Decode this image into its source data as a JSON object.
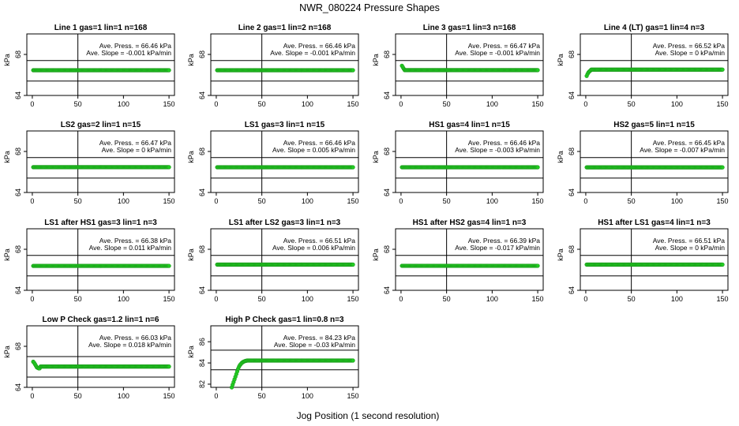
{
  "title": "NWR_080224  Pressure Shapes",
  "xlabel": "Jog Position (1 second resolution)",
  "colors": {
    "points": "#22cc22",
    "point_edge": "#1a9a1a",
    "lines": "#000000"
  },
  "chart_data": [
    {
      "type": "scatter",
      "title": "Line 1 gas=1 lin=1 n=168",
      "ylabel": "kPa",
      "xlim": [
        0,
        150
      ],
      "xticks": [
        0,
        50,
        100,
        150
      ],
      "ylim": [
        64,
        70
      ],
      "yticks": [
        64,
        68
      ],
      "hlines": [
        65.4,
        67.4
      ],
      "vline": 50,
      "ave_press": "Ave. Press. = 66.46 kPa",
      "ave_slope": "Ave. Slope = -0.001  kPa/min",
      "series": {
        "x0": 1,
        "x1": 150,
        "y": 66.46
      }
    },
    {
      "type": "scatter",
      "title": "Line 2 gas=1 lin=2 n=168",
      "ylabel": "kPa",
      "xlim": [
        0,
        150
      ],
      "xticks": [
        0,
        50,
        100,
        150
      ],
      "ylim": [
        64,
        70
      ],
      "yticks": [
        64,
        68
      ],
      "hlines": [
        65.4,
        67.4
      ],
      "vline": 50,
      "ave_press": "Ave. Press. = 66.46 kPa",
      "ave_slope": "Ave. Slope = -0.001  kPa/min",
      "series": {
        "x0": 1,
        "x1": 150,
        "y": 66.46
      }
    },
    {
      "type": "scatter",
      "title": "Line 3 gas=1 lin=3 n=168",
      "ylabel": "kPa",
      "xlim": [
        0,
        150
      ],
      "xticks": [
        0,
        50,
        100,
        150
      ],
      "ylim": [
        64,
        70
      ],
      "yticks": [
        64,
        68
      ],
      "hlines": [
        65.4,
        67.4
      ],
      "vline": 50,
      "ave_press": "Ave. Press. = 66.47 kPa",
      "ave_slope": "Ave. Slope = -0.001  kPa/min",
      "series": {
        "x0": 1,
        "x1": 150,
        "y": 66.47,
        "start": [
          [
            1,
            66.9
          ],
          [
            2,
            66.75
          ],
          [
            3,
            66.6
          ]
        ]
      }
    },
    {
      "type": "scatter",
      "title": "Line 4 (LT) gas=1 lin=4 n=3",
      "ylabel": "kPa",
      "xlim": [
        0,
        150
      ],
      "xticks": [
        0,
        50,
        100,
        150
      ],
      "ylim": [
        64,
        70
      ],
      "yticks": [
        64,
        68
      ],
      "hlines": [
        65.4,
        67.4
      ],
      "vline": 50,
      "ave_press": "Ave. Press. = 66.52 kPa",
      "ave_slope": "Ave. Slope = 0  kPa/min",
      "series": {
        "x0": 1,
        "x1": 150,
        "y": 66.52,
        "start": [
          [
            1,
            65.9
          ],
          [
            2,
            66.1
          ],
          [
            3,
            66.25
          ],
          [
            4,
            66.35
          ],
          [
            5,
            66.42
          ]
        ]
      }
    },
    {
      "type": "scatter",
      "title": "LS2 gas=2 lin=1 n=15",
      "ylabel": "kPa",
      "xlim": [
        0,
        150
      ],
      "xticks": [
        0,
        50,
        100,
        150
      ],
      "ylim": [
        64,
        70
      ],
      "yticks": [
        64,
        68
      ],
      "hlines": [
        65.4,
        67.4
      ],
      "vline": 50,
      "ave_press": "Ave. Press. = 66.47 kPa",
      "ave_slope": "Ave. Slope = 0  kPa/min",
      "series": {
        "x0": 1,
        "x1": 150,
        "y": 66.47
      }
    },
    {
      "type": "scatter",
      "title": "LS1 gas=3 lin=1 n=15",
      "ylabel": "kPa",
      "xlim": [
        0,
        150
      ],
      "xticks": [
        0,
        50,
        100,
        150
      ],
      "ylim": [
        64,
        70
      ],
      "yticks": [
        64,
        68
      ],
      "hlines": [
        65.4,
        67.4
      ],
      "vline": 50,
      "ave_press": "Ave. Press. = 66.46 kPa",
      "ave_slope": "Ave. Slope = 0.005  kPa/min",
      "series": {
        "x0": 1,
        "x1": 150,
        "y": 66.46
      }
    },
    {
      "type": "scatter",
      "title": "HS1 gas=4 lin=1 n=15",
      "ylabel": "kPa",
      "xlim": [
        0,
        150
      ],
      "xticks": [
        0,
        50,
        100,
        150
      ],
      "ylim": [
        64,
        70
      ],
      "yticks": [
        64,
        68
      ],
      "hlines": [
        65.4,
        67.4
      ],
      "vline": 50,
      "ave_press": "Ave. Press. = 66.46 kPa",
      "ave_slope": "Ave. Slope = -0.003  kPa/min",
      "series": {
        "x0": 1,
        "x1": 150,
        "y": 66.46
      }
    },
    {
      "type": "scatter",
      "title": "HS2 gas=5 lin=1 n=15",
      "ylabel": "kPa",
      "xlim": [
        0,
        150
      ],
      "xticks": [
        0,
        50,
        100,
        150
      ],
      "ylim": [
        64,
        70
      ],
      "yticks": [
        64,
        68
      ],
      "hlines": [
        65.4,
        67.4
      ],
      "vline": 50,
      "ave_press": "Ave. Press. = 66.45 kPa",
      "ave_slope": "Ave. Slope = -0.007  kPa/min",
      "series": {
        "x0": 1,
        "x1": 150,
        "y": 66.45
      }
    },
    {
      "type": "scatter",
      "title": "LS1 after HS1 gas=3 lin=1 n=3",
      "ylabel": "kPa",
      "xlim": [
        0,
        150
      ],
      "xticks": [
        0,
        50,
        100,
        150
      ],
      "ylim": [
        64,
        70
      ],
      "yticks": [
        64,
        68
      ],
      "hlines": [
        65.4,
        67.4
      ],
      "vline": 50,
      "ave_press": "Ave. Press. = 66.38 kPa",
      "ave_slope": "Ave. Slope = 0.011  kPa/min",
      "series": {
        "x0": 1,
        "x1": 150,
        "y": 66.38
      }
    },
    {
      "type": "scatter",
      "title": "LS1 after LS2 gas=3 lin=1 n=3",
      "ylabel": "kPa",
      "xlim": [
        0,
        150
      ],
      "xticks": [
        0,
        50,
        100,
        150
      ],
      "ylim": [
        64,
        70
      ],
      "yticks": [
        64,
        68
      ],
      "hlines": [
        65.4,
        67.4
      ],
      "vline": 50,
      "ave_press": "Ave. Press. = 66.51 kPa",
      "ave_slope": "Ave. Slope = 0.006  kPa/min",
      "series": {
        "x0": 1,
        "x1": 150,
        "y": 66.51
      }
    },
    {
      "type": "scatter",
      "title": "HS1 after HS2 gas=4 lin=1 n=3",
      "ylabel": "kPa",
      "xlim": [
        0,
        150
      ],
      "xticks": [
        0,
        50,
        100,
        150
      ],
      "ylim": [
        64,
        70
      ],
      "yticks": [
        64,
        68
      ],
      "hlines": [
        65.4,
        67.4
      ],
      "vline": 50,
      "ave_press": "Ave. Press. = 66.39 kPa",
      "ave_slope": "Ave. Slope = -0.017  kPa/min",
      "series": {
        "x0": 1,
        "x1": 150,
        "y": 66.39
      }
    },
    {
      "type": "scatter",
      "title": "HS1 after LS1 gas=4 lin=1 n=3",
      "ylabel": "kPa",
      "xlim": [
        0,
        150
      ],
      "xticks": [
        0,
        50,
        100,
        150
      ],
      "ylim": [
        64,
        70
      ],
      "yticks": [
        64,
        68
      ],
      "hlines": [
        65.4,
        67.4
      ],
      "vline": 50,
      "ave_press": "Ave. Press. = 66.51 kPa",
      "ave_slope": "Ave. Slope = 0  kPa/min",
      "series": {
        "x0": 1,
        "x1": 150,
        "y": 66.51
      }
    },
    {
      "type": "scatter",
      "title": "Low P Check gas=1.2 lin=1 n=6",
      "ylabel": "kPa",
      "xlim": [
        0,
        150
      ],
      "xticks": [
        0,
        50,
        100,
        150
      ],
      "ylim": [
        64,
        70
      ],
      "yticks": [
        64,
        68
      ],
      "hlines": [
        65.0,
        67.0
      ],
      "vline": 50,
      "ave_press": "Ave. Press. = 66.03 kPa",
      "ave_slope": "Ave. Slope = 0.018  kPa/min",
      "series": {
        "x0": 1,
        "x1": 150,
        "y": 66.03,
        "start": [
          [
            1,
            66.5
          ],
          [
            2,
            66.4
          ],
          [
            3,
            66.25
          ],
          [
            4,
            66.1
          ],
          [
            5,
            65.95
          ],
          [
            6,
            65.9
          ],
          [
            7,
            65.85
          ],
          [
            8,
            65.85
          ]
        ]
      }
    },
    {
      "type": "scatter",
      "title": "High P Check gas=1 lin=0.8 n=3",
      "ylabel": "kPa",
      "xlim": [
        0,
        150
      ],
      "xticks": [
        0,
        50,
        100,
        150
      ],
      "ylim": [
        81.7,
        87.5
      ],
      "yticks": [
        82,
        84,
        86
      ],
      "hlines": [
        83.35,
        85.2
      ],
      "vline": 50,
      "ave_press": "Ave. Press. = 84.23 kPa",
      "ave_slope": "Ave. Slope = -0.03  kPa/min",
      "series": {
        "x0": 1,
        "x1": 150,
        "y": 84.23,
        "start": [
          [
            17,
            81.7
          ],
          [
            18,
            81.95
          ],
          [
            19,
            82.2
          ],
          [
            20,
            82.45
          ],
          [
            21,
            82.7
          ],
          [
            22,
            82.95
          ],
          [
            23,
            83.2
          ],
          [
            24,
            83.45
          ],
          [
            25,
            83.65
          ],
          [
            26,
            83.8
          ],
          [
            27,
            83.9
          ],
          [
            28,
            84.0
          ],
          [
            29,
            84.07
          ],
          [
            30,
            84.12
          ],
          [
            31,
            84.16
          ],
          [
            32,
            84.19
          ],
          [
            33,
            84.21
          ]
        ],
        "first_x": 17
      }
    }
  ]
}
